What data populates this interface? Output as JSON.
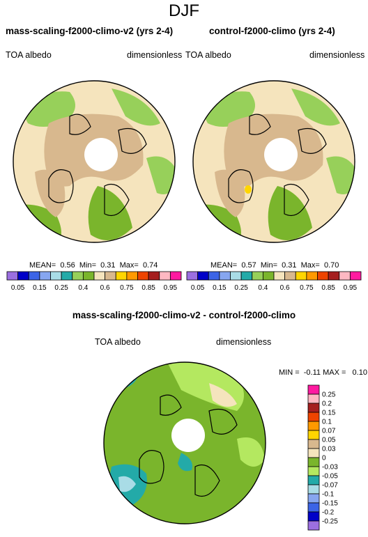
{
  "title": "DJF",
  "panels": [
    {
      "title": "mass-scaling-f2000-climo-v2 (yrs 2-4)",
      "left_label": "TOA albedo",
      "right_label": "dimensionless",
      "stats": "MEAN=  0.56  Min=  0.31  Max=  0.74"
    },
    {
      "title": "control-f2000-climo (yrs 2-4)",
      "left_label": "TOA albedo",
      "right_label": "dimensionless",
      "stats": "MEAN=  0.57  Min=  0.31  Max=  0.70"
    }
  ],
  "colorbar": {
    "ticks": [
      "0.05",
      "0.15",
      "0.25",
      "0.4",
      "0.6",
      "0.75",
      "0.85",
      "0.95"
    ],
    "colors": [
      "#9b6fe0",
      "#0000c8",
      "#3c64e6",
      "#87a6f0",
      "#a9dce6",
      "#23aaa8",
      "#97d05a",
      "#7ab52c",
      "#f5e4bd",
      "#d8b88e",
      "#ffd500",
      "#ff9900",
      "#ee4400",
      "#a51f1f",
      "#ffb8c2",
      "#ff1aa0"
    ]
  },
  "diff_panel": {
    "title": "mass-scaling-f2000-climo-v2 - control-f2000-climo",
    "left_label": "TOA albedo",
    "right_label": "dimensionless",
    "stats": "MIN =  -0.11 MAX =   0.10"
  },
  "diff_colorbar": {
    "ticks": [
      "0.25",
      "0.2",
      "0.15",
      "0.1",
      "0.07",
      "0.05",
      "0.03",
      "0",
      "-0.03",
      "-0.05",
      "-0.07",
      "-0.1",
      "-0.15",
      "-0.2",
      "-0.25"
    ],
    "colors": [
      "#ff1aa0",
      "#ffb8c2",
      "#a51f1f",
      "#ee4400",
      "#ff9900",
      "#ffd500",
      "#d8b88e",
      "#f5e4bd",
      "#7ab52c",
      "#b4e860",
      "#23aaa8",
      "#a9dce6",
      "#87a6f0",
      "#3c64e6",
      "#0000c8",
      "#9b6fe0"
    ]
  }
}
